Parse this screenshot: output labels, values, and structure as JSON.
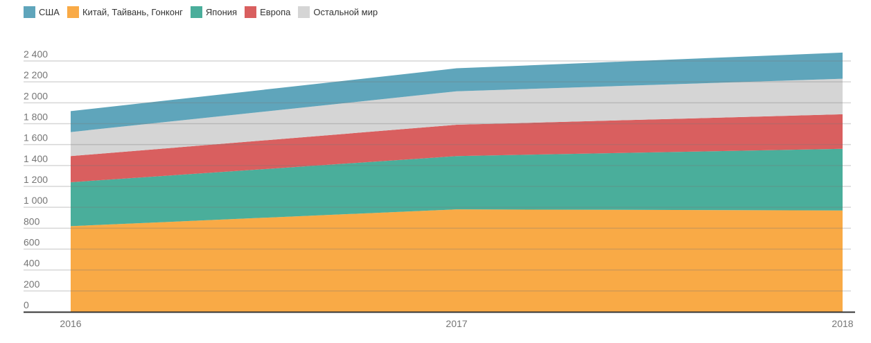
{
  "chart_data": {
    "type": "area",
    "stacked": true,
    "title": "",
    "xlabel": "",
    "ylabel": "",
    "categories": [
      "2016",
      "2017",
      "2018"
    ],
    "ylim": [
      0,
      2400
    ],
    "y_ticks": [
      0,
      200,
      400,
      600,
      800,
      1000,
      1200,
      1400,
      1600,
      1800,
      2000,
      2200,
      2400
    ],
    "y_tick_labels": [
      "0",
      "200",
      "400",
      "600",
      "800",
      "1 000",
      "1 200",
      "1 400",
      "1 600",
      "1 800",
      "2 000",
      "2 200",
      "2 400"
    ],
    "grid": true,
    "legend_position": "top-left",
    "series": [
      {
        "name": "США",
        "color": "#5fa5bb",
        "values": [
          200,
          220,
          250
        ]
      },
      {
        "name": "Китай, Тайвань, Гонконг",
        "color": "#f9aa46",
        "values": [
          820,
          980,
          970
        ]
      },
      {
        "name": "Япония",
        "color": "#4aae9b",
        "values": [
          420,
          510,
          590
        ]
      },
      {
        "name": "Европа",
        "color": "#d95f5f",
        "values": [
          250,
          300,
          330
        ]
      },
      {
        "name": "Остальной мир",
        "color": "#d5d5d5",
        "values": [
          230,
          320,
          340
        ]
      }
    ],
    "stack_order_bottom_to_top": [
      "Китай, Тайвань, Гонконг",
      "Япония",
      "Европа",
      "Остальной мир",
      "США"
    ]
  }
}
